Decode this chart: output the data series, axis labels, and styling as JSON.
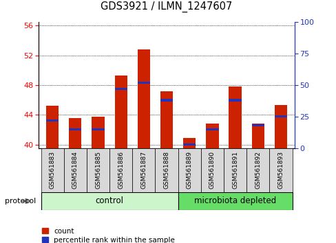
{
  "title": "GDS3921 / ILMN_1247607",
  "samples": [
    "GSM561883",
    "GSM561884",
    "GSM561885",
    "GSM561886",
    "GSM561887",
    "GSM561888",
    "GSM561889",
    "GSM561890",
    "GSM561891",
    "GSM561892",
    "GSM561893"
  ],
  "count_values": [
    45.2,
    43.6,
    43.7,
    49.3,
    52.8,
    47.2,
    40.9,
    42.8,
    47.8,
    42.8,
    45.3
  ],
  "percentile_values": [
    22,
    15,
    15,
    47,
    52,
    38,
    3,
    15,
    38,
    18,
    25
  ],
  "ylim_left": [
    39.5,
    56.5
  ],
  "ylim_right": [
    0,
    100
  ],
  "yticks_left": [
    40,
    44,
    48,
    52,
    56
  ],
  "yticks_right": [
    0,
    25,
    50,
    75,
    100
  ],
  "bar_color": "#cc2200",
  "blue_color": "#2233bb",
  "control_label": "control",
  "microbiota_label": "microbiota depleted",
  "protocol_label": "protocol",
  "legend_count": "count",
  "legend_percentile": "percentile rank within the sample",
  "bar_width": 0.55,
  "control_color": "#ccf5cc",
  "microbiota_color": "#66dd66",
  "n_control": 6,
  "n_total": 11
}
